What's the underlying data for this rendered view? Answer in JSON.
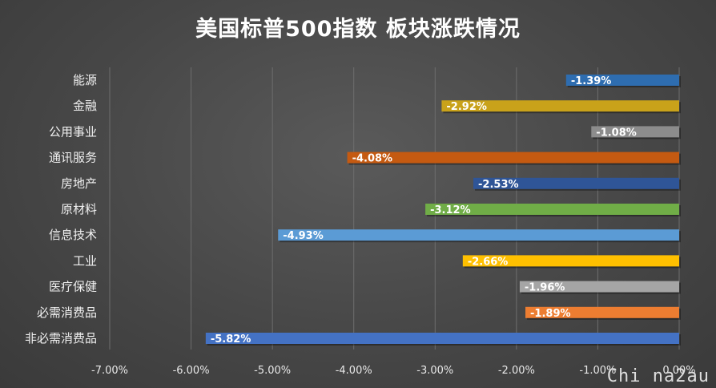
{
  "title": "美国标普500指数 板块涨跌情况",
  "watermark": "Chi na2au",
  "chart_data": {
    "type": "bar",
    "orientation": "horizontal",
    "title": "美国标普500指数 板块涨跌情况",
    "categories": [
      "能源",
      "金融",
      "公用事业",
      "通讯服务",
      "房地产",
      "原材料",
      "信息技术",
      "工业",
      "医疗保健",
      "必需消费品",
      "非必需消费品"
    ],
    "values": [
      -1.39,
      -2.92,
      -1.08,
      -4.08,
      -2.53,
      -3.12,
      -4.93,
      -2.66,
      -1.96,
      -1.89,
      -5.82
    ],
    "value_labels": [
      "-1.39%",
      "-2.92%",
      "-1.08%",
      "-4.08%",
      "-2.53%",
      "-3.12%",
      "-4.93%",
      "-2.66%",
      "-1.96%",
      "-1.89%",
      "-5.82%"
    ],
    "colors": [
      "#2e6db0",
      "#c9a21a",
      "#8c8c8c",
      "#c55a11",
      "#2f5597",
      "#70ad47",
      "#5b9bd5",
      "#ffc000",
      "#a5a5a5",
      "#ed7d31",
      "#4472c4"
    ],
    "xlim": [
      -7,
      0
    ],
    "ticks": [
      -7,
      -6,
      -5,
      -4,
      -3,
      -2,
      -1,
      0
    ],
    "tick_labels": [
      "-7.00%",
      "-6.00%",
      "-5.00%",
      "-4.00%",
      "-3.00%",
      "-2.00%",
      "-1.00%",
      "0.00%"
    ],
    "grid": true,
    "legend": "none"
  }
}
